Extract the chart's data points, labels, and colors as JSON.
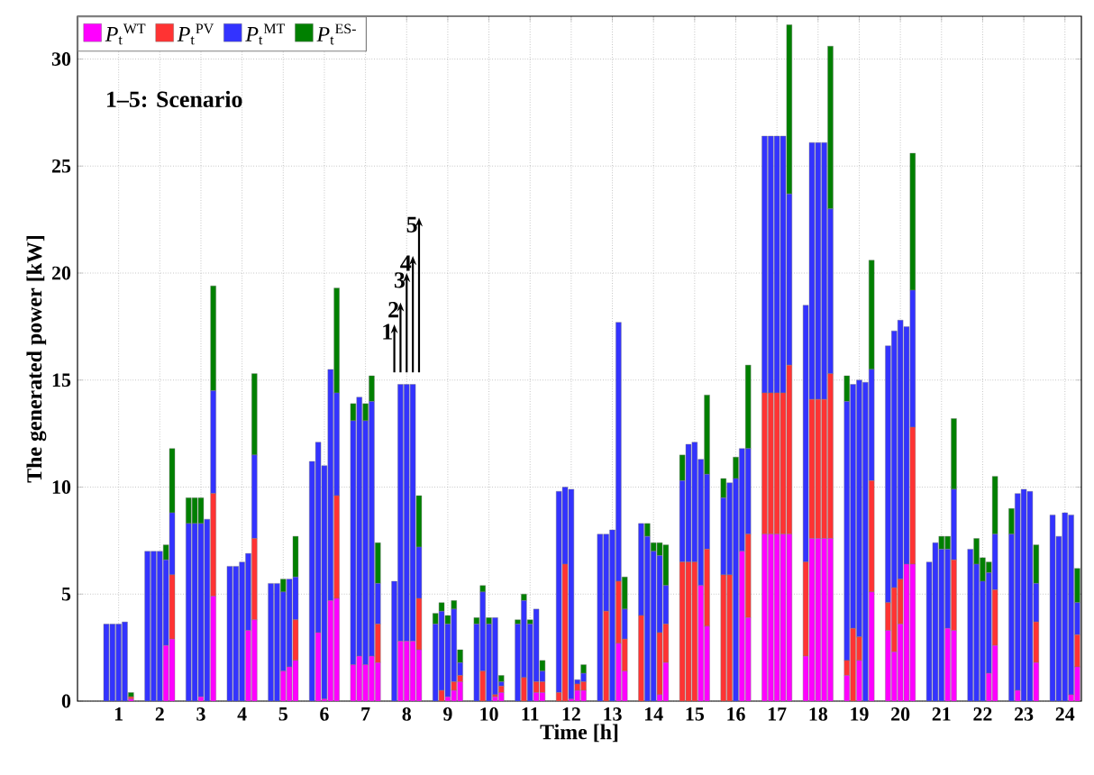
{
  "chart_data": {
    "type": "bar",
    "stacked": true,
    "xlabel": "Time [h]",
    "ylabel": "The generated power [kW]",
    "x": [
      0.7,
      0.85,
      1,
      1.15,
      1.3,
      1.7,
      1.85,
      2,
      2.15,
      2.3,
      2.7,
      2.85,
      3,
      3.15,
      3.3,
      3.7,
      3.85,
      4,
      4.15,
      4.3,
      4.7,
      4.85,
      5,
      5.15,
      5.3,
      5.7,
      5.85,
      6,
      6.15,
      6.3,
      6.7,
      6.85,
      7,
      7.15,
      7.3,
      7.7,
      7.85,
      8,
      8.15,
      8.3,
      8.7,
      8.85,
      9,
      9.15,
      9.3,
      9.7,
      9.85,
      10,
      10.15,
      10.3,
      10.7,
      10.85,
      11,
      11.15,
      11.3,
      11.7,
      11.85,
      12,
      12.15,
      12.3,
      12.7,
      12.85,
      13,
      13.15,
      13.3,
      13.7,
      13.85,
      14,
      14.15,
      14.3,
      14.7,
      14.85,
      15,
      15.15,
      15.3,
      15.7,
      15.85,
      16,
      16.15,
      16.3,
      16.7,
      16.85,
      17,
      17.15,
      17.3,
      17.7,
      17.85,
      18,
      18.15,
      18.3,
      18.7,
      18.85,
      19,
      19.15,
      19.3,
      19.7,
      19.85,
      20,
      20.15,
      20.3,
      20.7,
      20.85,
      21,
      21.15,
      21.3,
      21.7,
      21.85,
      22,
      22.15,
      22.3,
      22.7,
      22.85,
      23,
      23.15,
      23.3,
      23.7,
      23.85,
      24,
      24.15,
      24.3
    ],
    "series": [
      {
        "name": "*P*$_{t}$$^{WT}$",
        "color": "#ff00ff",
        "values": [
          0,
          0,
          0,
          0,
          0.1,
          0,
          0,
          0,
          2.6,
          2.9,
          0,
          0,
          0.2,
          0,
          4.9,
          0,
          0,
          0,
          3.3,
          3.8,
          0,
          0,
          1.4,
          1.6,
          1.9,
          0,
          3.2,
          0.1,
          4.7,
          4.8,
          1.7,
          2.1,
          1.7,
          2.1,
          1.8,
          0,
          2.8,
          2.8,
          2.8,
          2.4,
          0,
          0,
          0.2,
          0.5,
          0.9,
          0,
          0,
          0,
          0.2,
          0.4,
          0,
          0,
          0,
          0.4,
          0.4,
          0,
          0,
          0.1,
          0.5,
          0.5,
          0,
          0,
          0,
          2.7,
          1.4,
          0,
          0,
          0,
          0.3,
          1.8,
          0,
          0,
          0,
          5.4,
          3.5,
          0,
          0,
          0,
          7.0,
          3.9,
          7.8,
          7.8,
          7.8,
          7.8,
          7.8,
          2.1,
          7.6,
          7.6,
          7.6,
          7.6,
          1.2,
          0,
          1.9,
          0,
          5.1,
          3.3,
          2.3,
          3.6,
          6.4,
          6.4,
          0,
          0,
          0,
          3.4,
          3.3,
          0,
          0,
          0,
          1.3,
          2.6,
          0,
          0.5,
          0,
          0,
          1.8,
          0,
          0,
          0,
          0.3,
          1.6
        ]
      },
      {
        "name": "*P*$_{t}$$^{PV}$",
        "color": "#ff3333",
        "values": [
          0,
          0,
          0,
          0,
          0.1,
          0,
          0,
          0,
          0,
          3.0,
          0,
          0,
          0,
          0,
          4.8,
          0,
          0,
          0,
          0,
          3.8,
          0,
          0,
          0,
          0,
          1.9,
          0,
          0,
          0,
          0,
          4.8,
          0,
          0,
          0,
          0,
          1.8,
          0,
          0,
          0,
          0,
          2.4,
          0,
          0.5,
          0,
          0.4,
          0.3,
          0,
          1.4,
          0,
          0.1,
          0.3,
          0,
          1.1,
          0,
          0.5,
          0.5,
          0.4,
          6.4,
          0,
          0.3,
          0.4,
          0,
          4.2,
          0,
          2.9,
          1.5,
          4.0,
          0,
          0,
          2.9,
          1.8,
          6.5,
          6.5,
          6.5,
          0,
          3.6,
          5.9,
          5.9,
          0,
          0,
          3.9,
          6.6,
          6.6,
          6.6,
          6.6,
          7.9,
          4.4,
          6.5,
          6.5,
          6.5,
          7.7,
          0.7,
          3.4,
          1.1,
          0,
          5.2,
          1.3,
          3.0,
          2.1,
          0,
          6.4,
          0,
          0,
          0,
          0,
          3.3,
          0,
          0,
          0,
          0,
          2.6,
          0,
          0,
          0,
          0,
          1.9,
          0,
          0,
          0,
          0,
          1.5
        ]
      },
      {
        "name": "*P*$_{t}$$^{MT}$",
        "color": "#3333ff",
        "values": [
          3.6,
          3.6,
          3.6,
          3.7,
          0,
          7,
          7,
          7,
          4.0,
          2.9,
          8.3,
          8.3,
          8.1,
          8.5,
          4.8,
          6.3,
          6.3,
          6.5,
          3.6,
          3.9,
          5.5,
          5.5,
          3.7,
          4.1,
          2.0,
          11.2,
          8.9,
          10.9,
          10.8,
          4.8,
          11.4,
          12.1,
          11.4,
          11.9,
          1.9,
          5.6,
          12.0,
          12.0,
          12.0,
          2.4,
          3.6,
          3.7,
          3.4,
          3.4,
          0.6,
          3.6,
          3.7,
          3.6,
          3.6,
          0.2,
          3.6,
          3.6,
          3.6,
          3.4,
          0.5,
          9.4,
          3.6,
          9.8,
          0.2,
          0.4,
          7.8,
          3.6,
          8.0,
          12.1,
          1.4,
          4.3,
          7.7,
          7.0,
          3.6,
          1.8,
          3.8,
          5.5,
          5.6,
          5.9,
          3.5,
          3.6,
          4.3,
          10.4,
          4.8,
          4.0,
          12.0,
          12.0,
          12.0,
          12.0,
          8.0,
          12.0,
          12.0,
          12.0,
          12.0,
          7.7,
          12.1,
          11.4,
          12.0,
          14.9,
          5.2,
          12.0,
          12.0,
          12.1,
          11.1,
          6.4,
          6.5,
          7.4,
          7.1,
          3.7,
          3.3,
          7.1,
          6.4,
          5.6,
          4.7,
          2.6,
          7.8,
          9.2,
          9.9,
          9.8,
          1.8,
          8.7,
          7.7,
          8.8,
          8.4,
          1.5
        ]
      },
      {
        "name": "*P*$_{t}$$^{ES-}$",
        "color": "#008000",
        "values": [
          0,
          0,
          0,
          0,
          0.2,
          0,
          0,
          0,
          0.7,
          3.0,
          1.2,
          1.2,
          1.2,
          0,
          4.9,
          0,
          0,
          0,
          0,
          3.8,
          0,
          0,
          0.6,
          0,
          1.9,
          0,
          0,
          0,
          0,
          4.9,
          0.8,
          0,
          0.8,
          1.2,
          1.9,
          0,
          0,
          0,
          0,
          2.4,
          0.5,
          0.4,
          0.4,
          0.4,
          0.6,
          0.3,
          0.3,
          0.3,
          0,
          0.3,
          0.2,
          0.3,
          0.2,
          0,
          0.5,
          0,
          0,
          0,
          0,
          0.4,
          0,
          0,
          0,
          0,
          1.5,
          0,
          0.6,
          0.4,
          0.6,
          1.9,
          1.2,
          0,
          0,
          0,
          3.7,
          0.9,
          0,
          1.0,
          0,
          3.9,
          0,
          0,
          0,
          0,
          7.9,
          0,
          0,
          0,
          0,
          7.6,
          1.2,
          0,
          0,
          0,
          5.1,
          0,
          0,
          0,
          0,
          6.4,
          0,
          0,
          0.6,
          0.6,
          3.3,
          0,
          1.2,
          1.1,
          0.5,
          2.7,
          1.2,
          0,
          0,
          0,
          1.8,
          0,
          0,
          0,
          0,
          1.6
        ]
      }
    ],
    "xlim": [
      0,
      24.4
    ],
    "xticks": [
      1,
      2,
      3,
      4,
      5,
      6,
      7,
      8,
      9,
      10,
      11,
      12,
      13,
      14,
      15,
      16,
      17,
      18,
      19,
      20,
      21,
      22,
      23,
      24
    ],
    "ylim": [
      0,
      32
    ],
    "yticks": [
      0,
      5,
      10,
      15,
      20,
      25,
      30
    ],
    "grid": true,
    "legend": "top left",
    "annotations": [
      "1–5: Scenario",
      "1",
      "2",
      "3",
      "4",
      "5"
    ]
  }
}
